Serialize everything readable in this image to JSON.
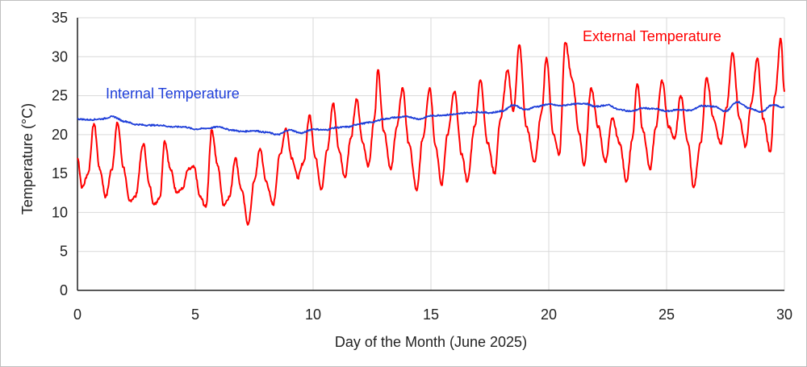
{
  "chart_data": {
    "type": "line",
    "xlabel": "Day of the Month (June 2025)",
    "ylabel": "Temperature (°C)",
    "xlim": [
      0,
      30
    ],
    "ylim": [
      0,
      35
    ],
    "x_ticks": [
      "0",
      "5",
      "10",
      "15",
      "20",
      "25",
      "30"
    ],
    "y_ticks": [
      "0",
      "5",
      "10",
      "15",
      "20",
      "25",
      "30",
      "35"
    ],
    "grid": true,
    "series": [
      {
        "name": "External Temperature",
        "color": "#ff0000",
        "points": [
          [
            0,
            17.0
          ],
          [
            0.2,
            13.2
          ],
          [
            0.45,
            15.0
          ],
          [
            0.7,
            21.4
          ],
          [
            0.95,
            15.5
          ],
          [
            1.2,
            12.0
          ],
          [
            1.45,
            15.5
          ],
          [
            1.7,
            21.5
          ],
          [
            1.95,
            15.8
          ],
          [
            2.2,
            11.5
          ],
          [
            2.45,
            12.0
          ],
          [
            2.8,
            18.8
          ],
          [
            3.05,
            13.5
          ],
          [
            3.25,
            11.0
          ],
          [
            3.5,
            12.0
          ],
          [
            3.7,
            19.2
          ],
          [
            3.95,
            15.5
          ],
          [
            4.2,
            12.7
          ],
          [
            4.45,
            13.0
          ],
          [
            4.7,
            15.5
          ],
          [
            4.95,
            15.8
          ],
          [
            5.2,
            12.0
          ],
          [
            5.45,
            10.7
          ],
          [
            5.7,
            20.6
          ],
          [
            5.95,
            16.0
          ],
          [
            6.2,
            11.0
          ],
          [
            6.45,
            12.0
          ],
          [
            6.7,
            17.0
          ],
          [
            6.95,
            13.0
          ],
          [
            7.25,
            8.5
          ],
          [
            7.5,
            14.0
          ],
          [
            7.75,
            18.2
          ],
          [
            8.0,
            14.0
          ],
          [
            8.3,
            11.0
          ],
          [
            8.6,
            17.5
          ],
          [
            8.85,
            20.8
          ],
          [
            9.1,
            17.0
          ],
          [
            9.35,
            14.5
          ],
          [
            9.6,
            16.5
          ],
          [
            9.85,
            22.5
          ],
          [
            10.1,
            17.0
          ],
          [
            10.35,
            13.0
          ],
          [
            10.6,
            18.0
          ],
          [
            10.85,
            24.0
          ],
          [
            11.1,
            18.0
          ],
          [
            11.35,
            14.5
          ],
          [
            11.6,
            19.5
          ],
          [
            11.85,
            24.5
          ],
          [
            12.1,
            19.0
          ],
          [
            12.35,
            16.0
          ],
          [
            12.6,
            22.0
          ],
          [
            12.75,
            28.3
          ],
          [
            13.0,
            20.5
          ],
          [
            13.3,
            15.5
          ],
          [
            13.55,
            21.0
          ],
          [
            13.8,
            26.0
          ],
          [
            14.05,
            19.0
          ],
          [
            14.4,
            12.8
          ],
          [
            14.65,
            19.5
          ],
          [
            14.95,
            26.0
          ],
          [
            15.2,
            18.5
          ],
          [
            15.45,
            13.5
          ],
          [
            15.7,
            20.0
          ],
          [
            16.0,
            25.5
          ],
          [
            16.3,
            17.5
          ],
          [
            16.55,
            14.0
          ],
          [
            16.85,
            21.0
          ],
          [
            17.1,
            27.0
          ],
          [
            17.4,
            19.0
          ],
          [
            17.7,
            15.0
          ],
          [
            17.95,
            22.0
          ],
          [
            18.25,
            28.2
          ],
          [
            18.5,
            23.0
          ],
          [
            18.75,
            31.5
          ],
          [
            19.05,
            21.0
          ],
          [
            19.4,
            16.5
          ],
          [
            19.7,
            23.0
          ],
          [
            19.9,
            29.9
          ],
          [
            20.2,
            20.0
          ],
          [
            20.45,
            17.5
          ],
          [
            20.7,
            31.8
          ],
          [
            21.0,
            27.0
          ],
          [
            21.3,
            20.0
          ],
          [
            21.5,
            16.0
          ],
          [
            21.8,
            26.0
          ],
          [
            22.1,
            21.0
          ],
          [
            22.4,
            16.5
          ],
          [
            22.7,
            22.0
          ],
          [
            23.0,
            19.0
          ],
          [
            23.3,
            14.0
          ],
          [
            23.55,
            19.5
          ],
          [
            23.75,
            26.5
          ],
          [
            24.0,
            20.5
          ],
          [
            24.3,
            15.5
          ],
          [
            24.55,
            21.0
          ],
          [
            24.8,
            27.0
          ],
          [
            25.1,
            21.0
          ],
          [
            25.35,
            19.5
          ],
          [
            25.6,
            25.0
          ],
          [
            25.9,
            19.0
          ],
          [
            26.15,
            13.2
          ],
          [
            26.45,
            19.0
          ],
          [
            26.7,
            27.3
          ],
          [
            27.0,
            22.0
          ],
          [
            27.3,
            18.8
          ],
          [
            27.55,
            23.5
          ],
          [
            27.8,
            30.5
          ],
          [
            28.1,
            22.0
          ],
          [
            28.35,
            18.5
          ],
          [
            28.6,
            24.0
          ],
          [
            28.85,
            29.8
          ],
          [
            29.1,
            22.0
          ],
          [
            29.4,
            17.8
          ],
          [
            29.6,
            25.0
          ],
          [
            29.85,
            32.3
          ],
          [
            30.0,
            25.5
          ]
        ]
      },
      {
        "name": "Internal Temperature",
        "color": "#1f3fd9",
        "points": [
          [
            0,
            22.0
          ],
          [
            0.5,
            21.9
          ],
          [
            1.0,
            22.0
          ],
          [
            1.5,
            22.3
          ],
          [
            2.0,
            21.7
          ],
          [
            2.5,
            21.3
          ],
          [
            3.0,
            21.2
          ],
          [
            3.5,
            21.2
          ],
          [
            4.0,
            21.0
          ],
          [
            4.5,
            21.0
          ],
          [
            5.0,
            20.7
          ],
          [
            5.5,
            20.8
          ],
          [
            6.0,
            21.0
          ],
          [
            6.5,
            20.6
          ],
          [
            7.0,
            20.4
          ],
          [
            7.5,
            20.5
          ],
          [
            8.0,
            20.3
          ],
          [
            8.5,
            20.0
          ],
          [
            9.0,
            20.6
          ],
          [
            9.5,
            20.2
          ],
          [
            10.0,
            20.7
          ],
          [
            10.5,
            20.6
          ],
          [
            11.0,
            20.9
          ],
          [
            11.5,
            21.0
          ],
          [
            12.0,
            21.4
          ],
          [
            12.5,
            21.6
          ],
          [
            13.0,
            22.0
          ],
          [
            13.5,
            22.2
          ],
          [
            14.0,
            22.3
          ],
          [
            14.5,
            22.0
          ],
          [
            15.0,
            22.4
          ],
          [
            15.5,
            22.5
          ],
          [
            16.0,
            22.6
          ],
          [
            16.5,
            22.8
          ],
          [
            17.0,
            22.9
          ],
          [
            17.5,
            22.8
          ],
          [
            18.0,
            23.0
          ],
          [
            18.5,
            23.8
          ],
          [
            19.0,
            23.2
          ],
          [
            19.5,
            23.6
          ],
          [
            20.0,
            23.9
          ],
          [
            20.5,
            23.7
          ],
          [
            21.0,
            23.9
          ],
          [
            21.5,
            24.0
          ],
          [
            22.0,
            23.6
          ],
          [
            22.5,
            23.8
          ],
          [
            23.0,
            23.2
          ],
          [
            23.5,
            23.0
          ],
          [
            24.0,
            23.4
          ],
          [
            24.5,
            23.3
          ],
          [
            25.0,
            23.0
          ],
          [
            25.5,
            23.2
          ],
          [
            26.0,
            23.1
          ],
          [
            26.5,
            23.7
          ],
          [
            27.0,
            23.6
          ],
          [
            27.5,
            23.0
          ],
          [
            28.0,
            24.2
          ],
          [
            28.5,
            23.4
          ],
          [
            29.0,
            22.9
          ],
          [
            29.5,
            23.8
          ],
          [
            30.0,
            23.5
          ]
        ]
      }
    ]
  }
}
